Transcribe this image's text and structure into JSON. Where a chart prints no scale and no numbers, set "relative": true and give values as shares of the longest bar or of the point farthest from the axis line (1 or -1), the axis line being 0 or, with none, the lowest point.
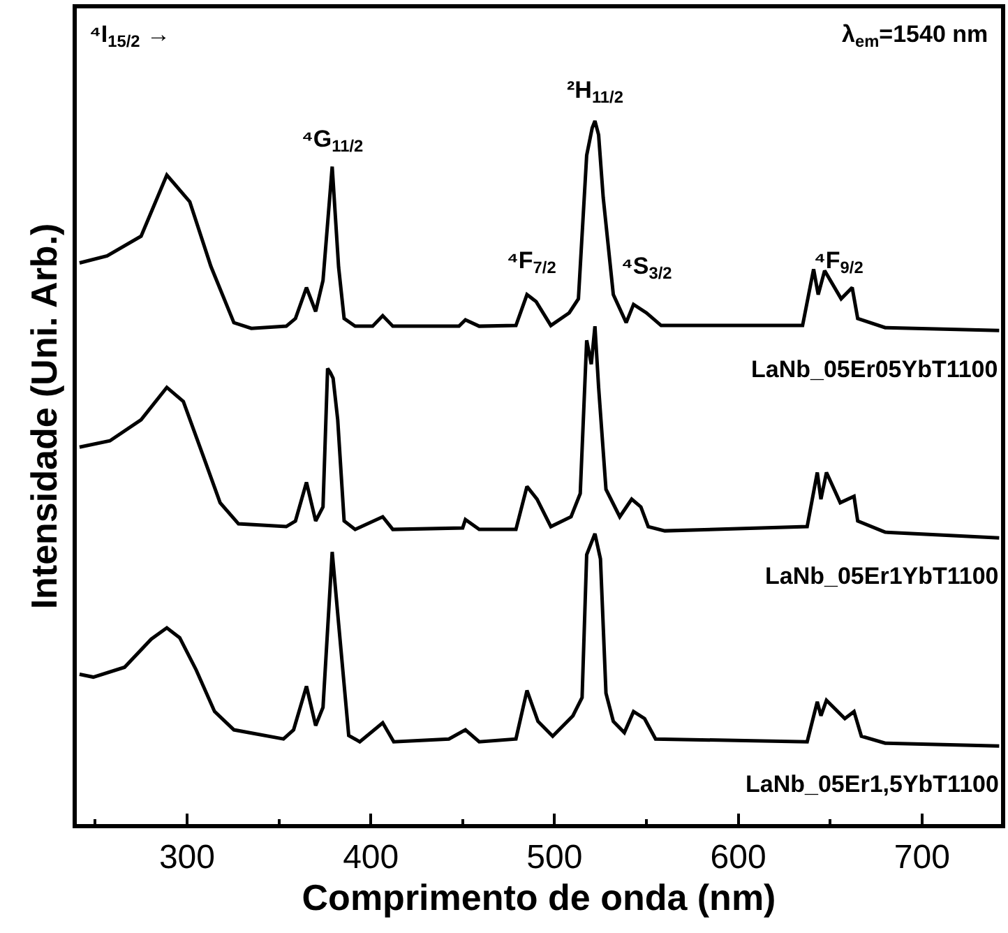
{
  "chart_data": {
    "type": "line",
    "relative": true,
    "xlabel": "Comprimento de onda (nm)",
    "ylabel": "Intensidade (Uni. Arb.)",
    "xlim": [
      240,
      743
    ],
    "xticks": [
      {
        "value": 250,
        "label": null
      },
      300,
      {
        "value": 350,
        "label": null
      },
      400,
      {
        "value": 450,
        "label": null
      },
      500,
      {
        "value": 550,
        "label": null
      },
      600,
      {
        "value": 650,
        "label": null
      },
      700
    ],
    "tick_labels": "x",
    "legend": false,
    "marker": "none",
    "line_style": "solid",
    "annotations": [
      "⁴G$_{11/2}$",
      "²H$_{11/2}$",
      "⁴F$_{7/2}$",
      "⁴S$_{3/2}$",
      "⁴F$_{9/2}$",
      "⁴I$_{15/2}$ →",
      "λ$_{em}$=1540 nm"
    ],
    "series": [
      {
        "name": "LaNb_05Er05YbT1100",
        "color": "#000000",
        "x": [
          241.5,
          256.5,
          275,
          289,
          301.5,
          313,
          325.5,
          335,
          354,
          359,
          365,
          370,
          374,
          379,
          382.5,
          385.5,
          391.5,
          401,
          406.5,
          412,
          448,
          451.5,
          459,
          479,
          485,
          490,
          498,
          508,
          513,
          517.5,
          520.5,
          522,
          524,
          526.5,
          532,
          539,
          543,
          550,
          558,
          635,
          641,
          643.5,
          647,
          656,
          662,
          665,
          680,
          742
        ],
        "values": [
          0.798,
          0.808,
          0.836,
          0.923,
          0.885,
          0.793,
          0.713,
          0.705,
          0.708,
          0.719,
          0.763,
          0.729,
          0.773,
          0.935,
          0.792,
          0.719,
          0.708,
          0.708,
          0.723,
          0.708,
          0.708,
          0.717,
          0.708,
          0.709,
          0.753,
          0.743,
          0.709,
          0.727,
          0.747,
          0.951,
          0.99,
          1.0,
          0.98,
          0.891,
          0.753,
          0.713,
          0.739,
          0.727,
          0.709,
          0.709,
          0.789,
          0.753,
          0.787,
          0.747,
          0.763,
          0.719,
          0.706,
          0.702
        ]
      },
      {
        "name": "LaNb_05Er1YbT1100",
        "color": "#000000",
        "x": [
          241.5,
          258,
          275,
          289,
          298,
          309,
          318,
          328,
          354,
          359,
          365,
          370,
          374,
          376.5,
          378,
          379.5,
          382,
          385.5,
          391.5,
          406.5,
          412,
          450,
          451.5,
          459,
          479,
          485,
          490.5,
          498,
          509,
          514,
          517.5,
          520,
          522,
          524,
          528,
          535.5,
          542,
          547,
          551,
          560,
          637.5,
          643,
          645,
          648,
          655.5,
          663,
          665,
          680,
          742
        ],
        "values": [
          0.536,
          0.545,
          0.575,
          0.621,
          0.601,
          0.522,
          0.457,
          0.427,
          0.423,
          0.431,
          0.486,
          0.431,
          0.451,
          0.648,
          0.642,
          0.634,
          0.575,
          0.431,
          0.419,
          0.437,
          0.419,
          0.421,
          0.433,
          0.419,
          0.419,
          0.48,
          0.462,
          0.423,
          0.437,
          0.47,
          0.688,
          0.654,
          0.708,
          0.621,
          0.476,
          0.437,
          0.462,
          0.451,
          0.423,
          0.417,
          0.423,
          0.5,
          0.462,
          0.5,
          0.457,
          0.466,
          0.431,
          0.415,
          0.407
        ]
      },
      {
        "name": "LaNb_05Er1,5YbT1100",
        "color": "#000000",
        "x": [
          241.5,
          249,
          266,
          280.5,
          289,
          296,
          305,
          315,
          325.5,
          352.5,
          358,
          365,
          370,
          374,
          379,
          382.5,
          388,
          394,
          406.5,
          412.5,
          442.5,
          451.5,
          459,
          479,
          485,
          491,
          499,
          510,
          515,
          517.5,
          522,
          525,
          528,
          532,
          538,
          543,
          549,
          555,
          637.5,
          643,
          645,
          648,
          658,
          663,
          667,
          680,
          742
        ],
        "values": [
          0.213,
          0.209,
          0.223,
          0.263,
          0.279,
          0.265,
          0.219,
          0.16,
          0.134,
          0.121,
          0.134,
          0.196,
          0.14,
          0.166,
          0.387,
          0.285,
          0.126,
          0.117,
          0.144,
          0.117,
          0.121,
          0.134,
          0.117,
          0.121,
          0.19,
          0.146,
          0.125,
          0.154,
          0.18,
          0.383,
          0.413,
          0.377,
          0.186,
          0.146,
          0.13,
          0.16,
          0.15,
          0.121,
          0.117,
          0.174,
          0.154,
          0.176,
          0.15,
          0.16,
          0.125,
          0.115,
          0.111
        ]
      }
    ]
  }
}
